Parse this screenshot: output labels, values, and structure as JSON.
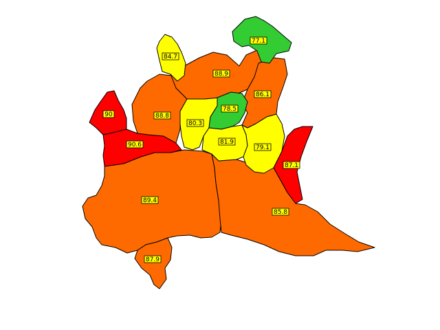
{
  "colors": {
    "red": "#ff0000",
    "orange": "#ff6a00",
    "yellow": "#ffff00",
    "green": "#33cc33",
    "label_background": "#ffff00",
    "border": "#000000"
  },
  "regions": [
    {
      "id": "north-east-tip",
      "label": "77.1",
      "color": "#33cc33"
    },
    {
      "id": "north-west-strip",
      "label": "84.7",
      "color": "#ffff00"
    },
    {
      "id": "north-central",
      "label": "88.9",
      "color": "#ff6a00"
    },
    {
      "id": "east-upper",
      "label": "86.1",
      "color": "#ff6a00"
    },
    {
      "id": "west-central",
      "label": "88.8",
      "color": "#ff6a00"
    },
    {
      "id": "center-north",
      "label": "78.5",
      "color": "#33cc33"
    },
    {
      "id": "center-west",
      "label": "80.3",
      "color": "#ffff00"
    },
    {
      "id": "center",
      "label": "81.9",
      "color": "#ffff00"
    },
    {
      "id": "center-east",
      "label": "79.1",
      "color": "#ffff00"
    },
    {
      "id": "far-west",
      "label": "90",
      "color": "#ff0000"
    },
    {
      "id": "west-middle",
      "label": "90.6",
      "color": "#ff0000"
    },
    {
      "id": "east-narrow",
      "label": "87.1",
      "color": "#ff6a00"
    },
    {
      "id": "south-west-large",
      "label": "89.4",
      "color": "#ff0000"
    },
    {
      "id": "south-east-large",
      "label": "85.8",
      "color": "#ff6a00"
    },
    {
      "id": "south-tip",
      "label": "87.9",
      "color": "#ff6a00"
    }
  ]
}
